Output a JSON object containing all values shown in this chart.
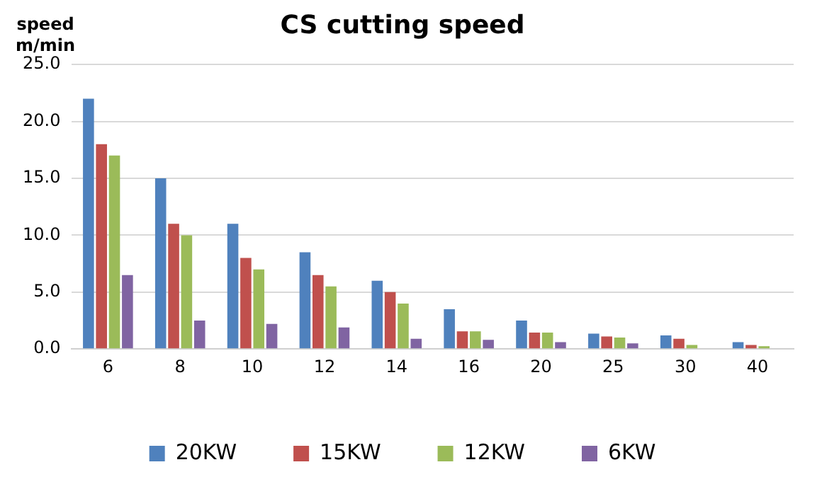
{
  "chart_data": {
    "type": "bar",
    "title": "CS cutting speed",
    "ylabel": "speed m/min",
    "categories": [
      "6",
      "8",
      "10",
      "12",
      "14",
      "16",
      "20",
      "25",
      "30",
      "40"
    ],
    "series": [
      {
        "name": "20KW",
        "color": "#4f81bd",
        "values": [
          22,
          15,
          11,
          8.5,
          6,
          3.5,
          2.5,
          1.35,
          1.2,
          0.6
        ]
      },
      {
        "name": "15KW",
        "color": "#c0504d",
        "values": [
          18,
          11,
          8,
          6.5,
          5,
          1.55,
          1.45,
          1.1,
          0.9,
          0.35
        ]
      },
      {
        "name": "12KW",
        "color": "#9bbb59",
        "values": [
          17,
          10,
          7,
          5.5,
          4,
          1.55,
          1.45,
          1,
          0.35,
          0.25
        ]
      },
      {
        "name": "6KW",
        "color": "#8064a2",
        "values": [
          6.5,
          2.5,
          2.2,
          1.9,
          0.9,
          0.8,
          0.6,
          0.5,
          null,
          null
        ]
      }
    ],
    "ylim": [
      0,
      25
    ],
    "yticks": [
      {
        "value": 0,
        "label": "0.0"
      },
      {
        "value": 5,
        "label": "5.0"
      },
      {
        "value": 10,
        "label": "10.0"
      },
      {
        "value": 15,
        "label": "15.0"
      },
      {
        "value": 20,
        "label": "20.0"
      },
      {
        "value": 25,
        "label": "25.0"
      }
    ],
    "grid": "y",
    "legend": "bottom"
  }
}
